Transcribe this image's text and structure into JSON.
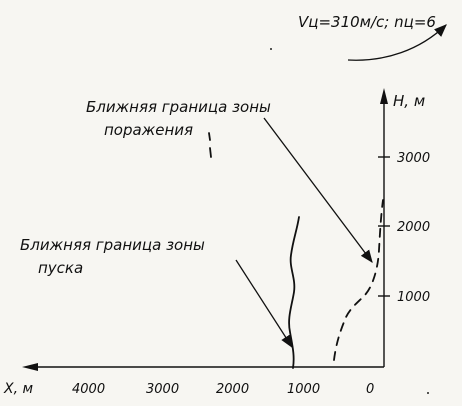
{
  "header": {
    "velocity_label": "Vц=310м/с; nц=6"
  },
  "labels": {
    "kill_zone": [
      "Ближняя граница зоны",
      "поражения"
    ],
    "launch_zone": [
      "Ближняя граница зоны",
      "пуска"
    ]
  },
  "axes": {
    "x_label": "X, м",
    "y_label": "H, м",
    "x_ticks": [
      "4000",
      "3000",
      "2000",
      "1000",
      "0"
    ],
    "y_ticks": [
      "3000",
      "2000",
      "1000"
    ]
  },
  "colors": {
    "ink": "#111111",
    "paper": "#f7f6f2"
  }
}
